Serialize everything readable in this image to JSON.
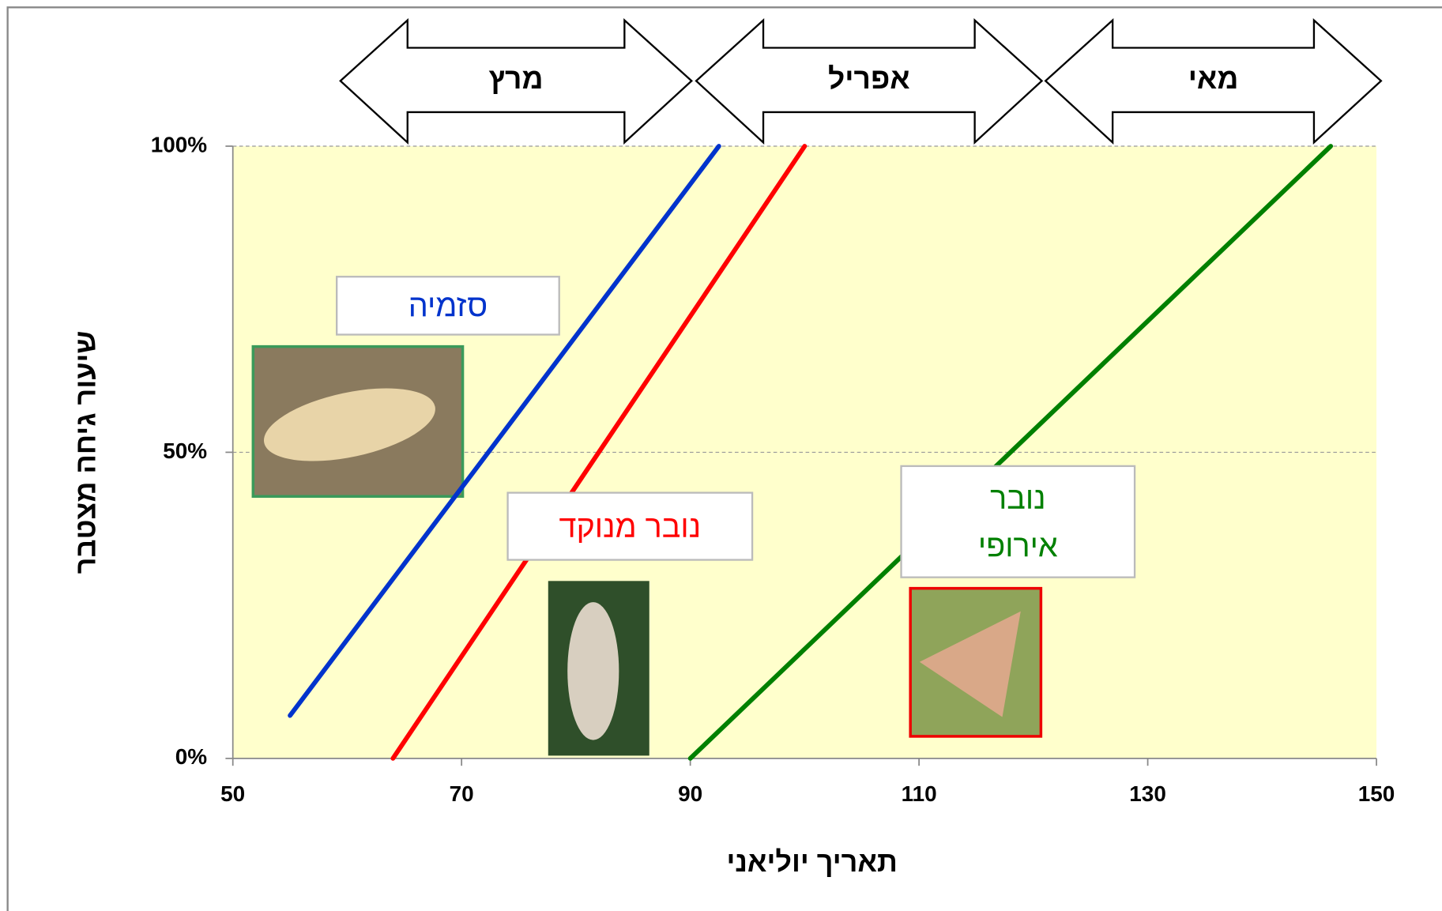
{
  "chart_data": {
    "type": "line",
    "annotations": [
      "מרץ",
      "אפריל",
      "מאי"
    ],
    "xlabel": "תאריך יוליאני",
    "ylabel": "שיעור גיחה מצטבר",
    "xlim": [
      50,
      150
    ],
    "xticks": [
      50,
      70,
      90,
      110,
      130,
      150
    ],
    "ylim": [
      0,
      100
    ],
    "yticks": [
      {
        "value": 0,
        "label": "0%"
      },
      {
        "value": 50,
        "label": "50%"
      },
      {
        "value": 100,
        "label": "100%"
      }
    ],
    "grid": true,
    "series": [
      {
        "name": "סזמיה",
        "color": "#0033cc",
        "x": [
          55,
          92.5
        ],
        "values": [
          7,
          100
        ]
      },
      {
        "name": "נובר מנוקד",
        "color": "#ff0000",
        "x": [
          64,
          100
        ],
        "values": [
          0,
          100
        ]
      },
      {
        "name": "נובר אירופי",
        "color": "#008000",
        "x": [
          90,
          146
        ],
        "values": [
          0,
          100
        ]
      }
    ]
  }
}
